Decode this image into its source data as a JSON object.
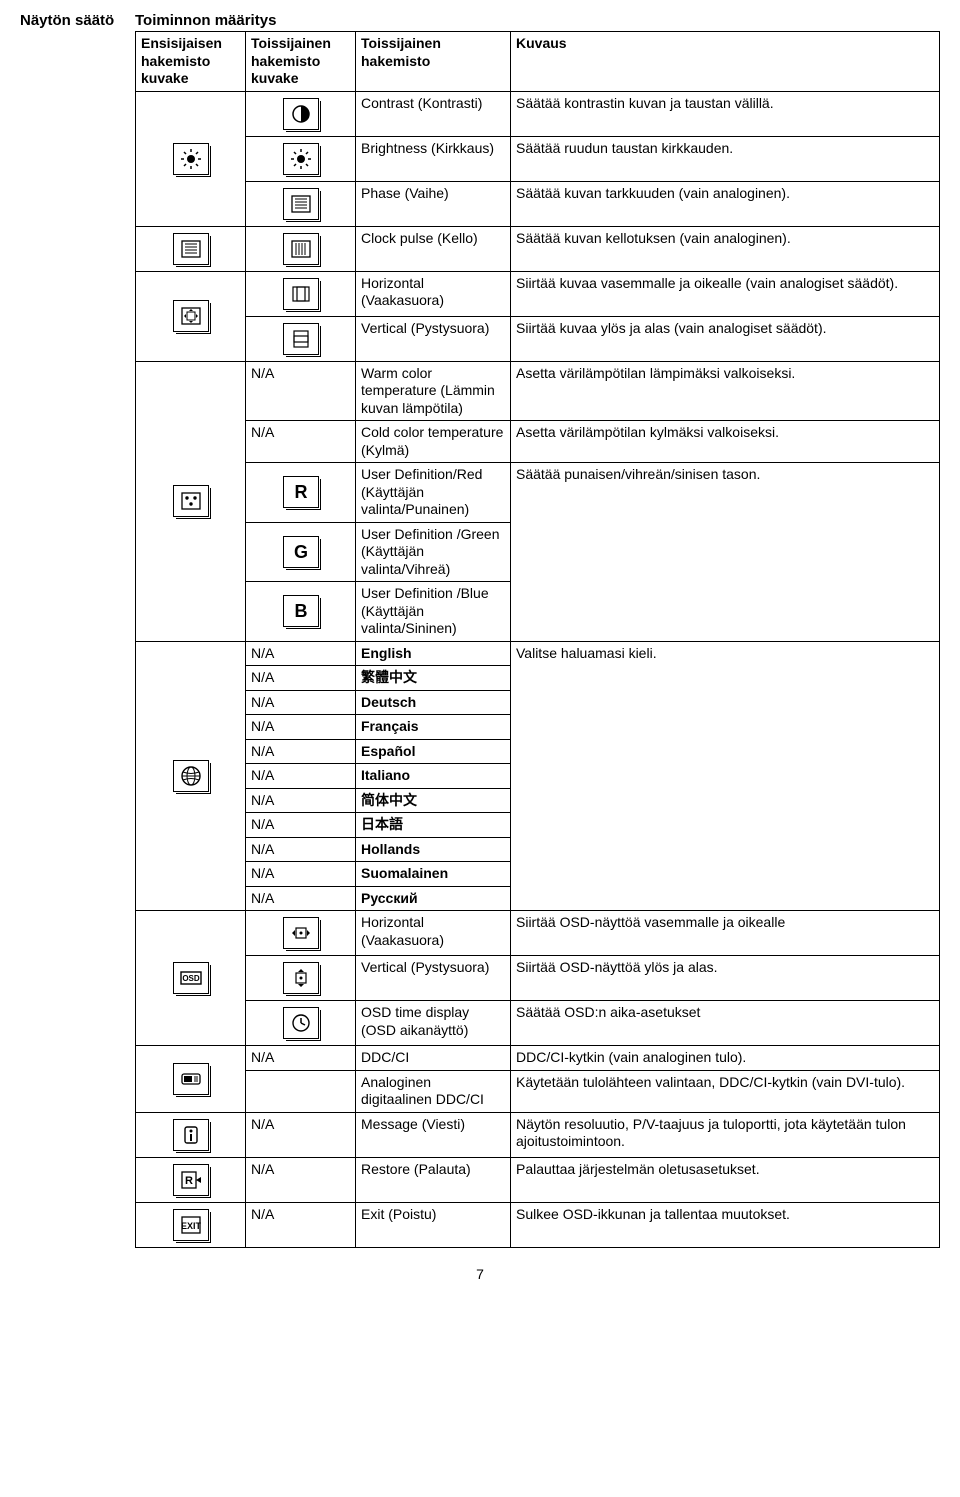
{
  "outer_heading": "Näytön säätö",
  "table_heading": "Toiminnon määritys",
  "headers": {
    "c1": "Ensisijaisen hakemisto kuvake",
    "c2": "Toissijainen hakemisto kuvake",
    "c3": "Toissijainen hakemisto",
    "c4": "Kuvaus"
  },
  "groups": [
    {
      "primary_icon": "brightness",
      "rows": [
        {
          "icon2": "contrast",
          "c3": "Contrast (Kontrasti)",
          "c4": "Säätää kontrastin kuvan ja taustan välillä."
        },
        {
          "icon2": "brightness",
          "c3": "Brightness (Kirkkaus)",
          "c4": "Säätää ruudun taustan kirkkauden."
        },
        {
          "icon2": "phase",
          "c3": "Phase (Vaihe)",
          "c4": "Säätää kuvan tarkkuuden (vain analoginen)."
        }
      ]
    },
    {
      "primary_icon": "phase",
      "rows": [
        {
          "icon2": "clock",
          "c3": "Clock pulse (Kello)",
          "c4": "Säätää kuvan kellotuksen (vain analoginen)."
        }
      ]
    },
    {
      "primary_icon": "position",
      "rows": [
        {
          "icon2": "hpos",
          "c3": "Horizontal (Vaakasuora)",
          "c4": "Siirtää kuvaa vasemmalle ja oikealle (vain analogiset säädöt)."
        },
        {
          "icon2": "vpos",
          "c3": "Vertical (Pystysuora)",
          "c4": "Siirtää kuvaa ylös ja alas (vain analogiset säädöt)."
        }
      ]
    },
    {
      "primary_icon": "colortemp",
      "rows": [
        {
          "icon2_text": "N/A",
          "c3": "Warm color temperature (Lämmin kuvan lämpötila)",
          "c4": "Asetta värilämpötilan lämpimäksi valkoiseksi."
        },
        {
          "icon2_text": "N/A",
          "c3": "Cold color temperature (Kylmä)",
          "c4": "Asetta värilämpötilan kylmäksi valkoiseksi."
        },
        {
          "icon2": "R",
          "c3": "User Definition/Red (Käyttäjän valinta/Punainen)",
          "c4": "Säätää punaisen/vihreän/sinisen tason.",
          "c4_rowspan": 3
        },
        {
          "icon2": "G",
          "c3": "User Definition /Green (Käyttäjän valinta/Vihreä)"
        },
        {
          "icon2": "B",
          "c3": "User Definition /Blue (Käyttäjän valinta/Sininen)"
        }
      ]
    },
    {
      "primary_icon": "lang",
      "rows_bold_c3": true,
      "rows": [
        {
          "icon2_text": "N/A",
          "c3": "English",
          "c4": "Valitse haluamasi kieli.",
          "c4_rowspan": 11
        },
        {
          "icon2_text": "N/A",
          "c3": "繁體中文"
        },
        {
          "icon2_text": "N/A",
          "c3": "Deutsch"
        },
        {
          "icon2_text": "N/A",
          "c3": "Français"
        },
        {
          "icon2_text": "N/A",
          "c3": "Español"
        },
        {
          "icon2_text": "N/A",
          "c3": "Italiano"
        },
        {
          "icon2_text": "N/A",
          "c3": "简体中文"
        },
        {
          "icon2_text": "N/A",
          "c3": "日本語"
        },
        {
          "icon2_text": "N/A",
          "c3": "Hollands"
        },
        {
          "icon2_text": "N/A",
          "c3": "Suomalainen"
        },
        {
          "icon2_text": "N/A",
          "c3": "Русский"
        }
      ]
    },
    {
      "primary_icon": "osd",
      "rows": [
        {
          "icon2": "osdh",
          "c3": "Horizontal (Vaakasuora)",
          "c4": "Siirtää OSD-näyttöä vasemmalle ja oikealle"
        },
        {
          "icon2": "osdv",
          "c3": "Vertical (Pystysuora)",
          "c4": "Siirtää OSD-näyttöä ylös ja alas."
        },
        {
          "icon2": "osdtime",
          "c3": "OSD time display (OSD aikanäyttö)",
          "c4": "Säätää OSD:n aika-asetukset"
        }
      ]
    },
    {
      "primary_icon": "ddcci",
      "rows": [
        {
          "icon2_text": "N/A",
          "c3": "DDC/CI",
          "c4": "DDC/CI-kytkin (vain analoginen tulo)."
        },
        {
          "icon2_text": "",
          "c3": "Analoginen digitaalinen DDC/CI",
          "c4": "Käytetään tulolähteen valintaan, DDC/CI-kytkin (vain DVI-tulo)."
        }
      ]
    },
    {
      "primary_icon": "info",
      "rows": [
        {
          "icon2_text": "N/A",
          "c3": "Message (Viesti)",
          "c4": "Näytön resoluutio, P/V-taajuus ja tuloportti, jota käytetään tulon ajoitustoimintoon."
        }
      ]
    },
    {
      "primary_icon": "restore",
      "rows": [
        {
          "icon2_text": "N/A",
          "c3": "Restore (Palauta)",
          "c4": "Palauttaa järjestelmän oletusasetukset."
        }
      ]
    },
    {
      "primary_icon": "exit",
      "rows": [
        {
          "icon2_text": "N/A",
          "c3": "Exit (Poistu)",
          "c4": "Sulkee OSD-ikkunan ja tallentaa muutokset."
        }
      ]
    }
  ],
  "page_number": "7"
}
